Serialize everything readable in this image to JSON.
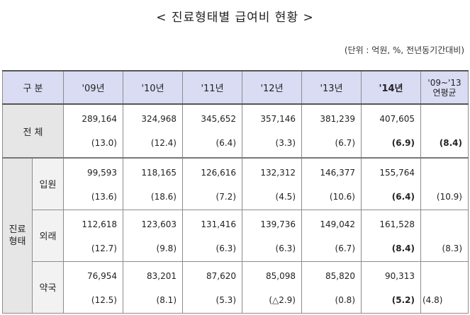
{
  "title": "< 진료형태별 급여비 현황 >",
  "unit": "(단위 : 억원, %, 전년동기간대비)",
  "table": {
    "headers": {
      "category": "구 분",
      "y09": "'09년",
      "y10": "'10년",
      "y11": "'11년",
      "y12": "'12년",
      "y13": "'13년",
      "y14": "'14년",
      "avg_line1": "'09~'13",
      "avg_line2": "연평균"
    },
    "total": {
      "label": "전 체",
      "values": [
        "289,164",
        "324,968",
        "345,652",
        "357,146",
        "381,239",
        "407,605"
      ],
      "changes": [
        "(13.0)",
        "(12.4)",
        "(6.4)",
        "(3.3)",
        "(6.7)",
        "(6.9)"
      ],
      "avg": "(8.4)"
    },
    "group_label_1": "진료",
    "group_label_2": "형태",
    "rows": [
      {
        "label": "입원",
        "values": [
          "99,593",
          "118,165",
          "126,616",
          "132,312",
          "146,377",
          "155,764"
        ],
        "changes": [
          "(13.6)",
          "(18.6)",
          "(7.2)",
          "(4.5)",
          "(10.6)",
          "(6.4)"
        ],
        "avg": "(10.9)"
      },
      {
        "label": "외래",
        "values": [
          "112,618",
          "123,603",
          "131,416",
          "139,736",
          "149,042",
          "161,528"
        ],
        "changes": [
          "(12.7)",
          "(9.8)",
          "(6.3)",
          "(6.3)",
          "(6.7)",
          "(8.4)"
        ],
        "avg": "(8.3)"
      },
      {
        "label": "약국",
        "values": [
          "76,954",
          "83,201",
          "87,620",
          "85,098",
          "85,820",
          "90,313"
        ],
        "changes": [
          "(12.5)",
          "(8.1)",
          "(5.3)",
          "(△2.9)",
          "(0.8)",
          "(5.2)"
        ],
        "avg": "(4.8)"
      }
    ]
  },
  "colors": {
    "header_bg": "#d9dcf3",
    "category_bg": "#e6e6e6",
    "subcategory_bg": "#f2f2f2"
  }
}
